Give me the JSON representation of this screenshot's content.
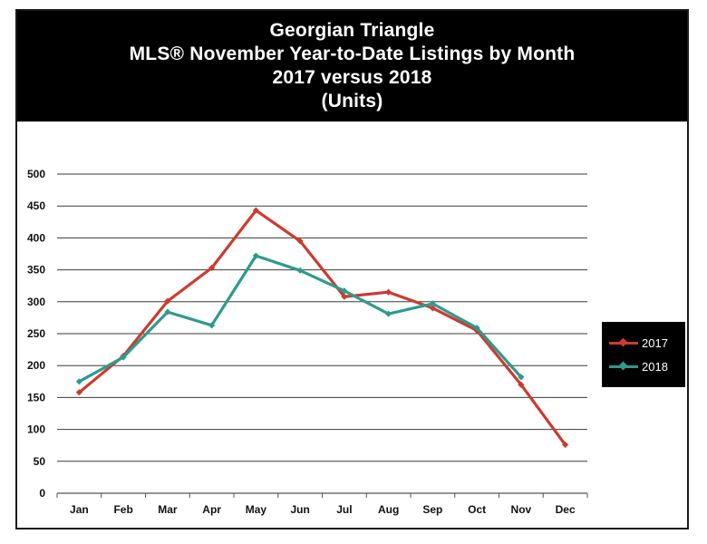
{
  "chart_data": {
    "type": "line",
    "title": [
      "Georgian Triangle",
      "MLS® November Year-to-Date Listings by Month",
      "2017 versus 2018",
      "(Units)"
    ],
    "categories": [
      "Jan",
      "Feb",
      "Mar",
      "Apr",
      "May",
      "Jun",
      "Jul",
      "Aug",
      "Sep",
      "Oct",
      "Nov",
      "Dec"
    ],
    "series": [
      {
        "name": "2017",
        "color": "#cc3b2e",
        "values": [
          158,
          215,
          301,
          353,
          443,
          395,
          308,
          315,
          290,
          255,
          170,
          76
        ]
      },
      {
        "name": "2018",
        "color": "#2e9a8f",
        "values": [
          175,
          213,
          284,
          263,
          372,
          349,
          317,
          281,
          297,
          259,
          182,
          null
        ]
      }
    ],
    "ylim": [
      0,
      500
    ],
    "yticks": [
      0,
      50,
      100,
      150,
      200,
      250,
      300,
      350,
      400,
      450,
      500
    ],
    "grid": true,
    "legend_position": "right"
  }
}
